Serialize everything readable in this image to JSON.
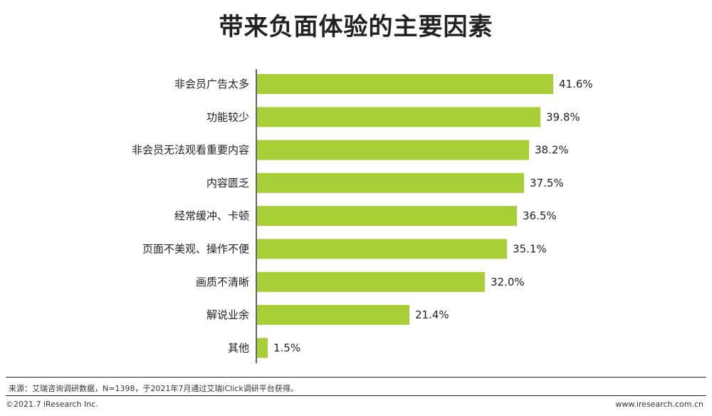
{
  "chart_data": {
    "type": "bar",
    "orientation": "horizontal",
    "title": "带来负面体验的主要因素",
    "categories": [
      "非会员广告太多",
      "功能较少",
      "非会员无法观看重要内容",
      "内容匮乏",
      "经常缓冲、卡顿",
      "页面不美观、操作不便",
      "画质不清晰",
      "解说业余",
      "其他"
    ],
    "values": [
      41.6,
      39.8,
      38.2,
      37.5,
      36.5,
      35.1,
      32.0,
      21.4,
      1.5
    ],
    "value_labels": [
      "41.6%",
      "39.8%",
      "38.2%",
      "37.5%",
      "36.5%",
      "35.1%",
      "32.0%",
      "21.4%",
      "1.5%"
    ],
    "xlim": [
      0,
      50
    ],
    "grid": false,
    "bar_color": "#a9cf38"
  },
  "footer": {
    "source": "来源：艾瑞咨询调研数据，N=1398，于2021年7月通过艾瑞iClick调研平台获得。",
    "copyright": "©2021.7 iResearch Inc.",
    "website": "www.iresearch.com.cn"
  }
}
